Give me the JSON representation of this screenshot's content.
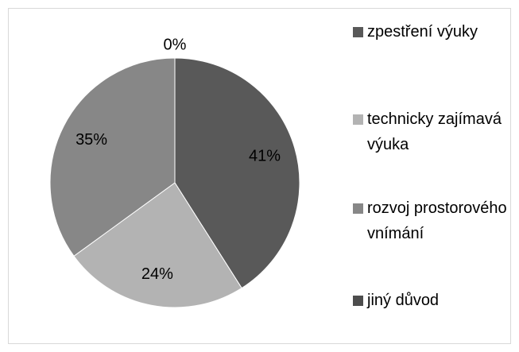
{
  "chart_data": {
    "type": "pie",
    "categories": [
      "zpestření výuky",
      "technicky zajímavá výuka",
      "rozvoj prostorového vnímání",
      "jiný důvod"
    ],
    "values": [
      41,
      24,
      35,
      0
    ],
    "value_labels": [
      "41%",
      "24%",
      "35%",
      "0%"
    ],
    "colors": [
      "#595959",
      "#b3b3b3",
      "#878787",
      "#4d4d4d"
    ],
    "legend": "right"
  }
}
